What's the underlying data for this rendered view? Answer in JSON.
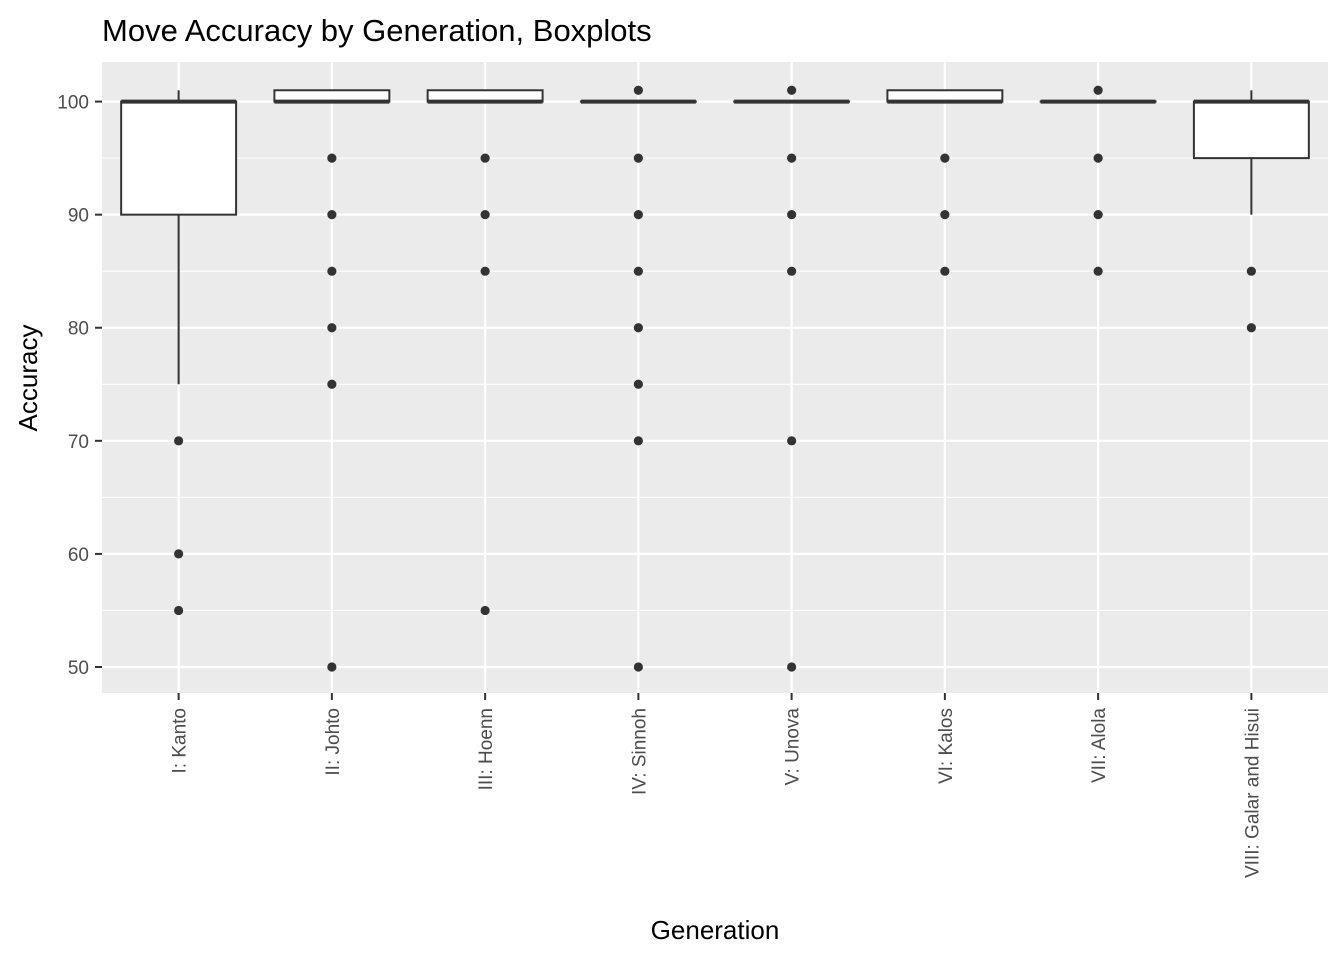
{
  "chart_data": {
    "type": "boxplot",
    "title": "Move Accuracy by Generation, Boxplots",
    "xlabel": "Generation",
    "ylabel": "Accuracy",
    "ylim": [
      47.7,
      103.5
    ],
    "yticks": [
      50,
      60,
      70,
      80,
      90,
      100
    ],
    "grid": true,
    "legend": "none",
    "colors": {
      "panel": "#ebebeb",
      "grid": "#ffffff",
      "box_fill": "#ffffff",
      "box_stroke": "#333333",
      "outlier": "#333333"
    },
    "categories": [
      "I: Kanto",
      "II: Johto",
      "III: Hoenn",
      "IV: Sinnoh",
      "V: Unova",
      "VI: Kalos",
      "VII: Alola",
      "VIII: Galar and Hisui"
    ],
    "boxes": [
      {
        "category": "I: Kanto",
        "lower_whisker": 75,
        "q1": 90,
        "median": 100,
        "q3": 100,
        "upper_whisker": 101,
        "outliers": [
          70,
          60,
          55
        ]
      },
      {
        "category": "II: Johto",
        "lower_whisker": 100,
        "q1": 100,
        "median": 100,
        "q3": 101,
        "upper_whisker": 101,
        "outliers": [
          95,
          90,
          85,
          80,
          75,
          50
        ]
      },
      {
        "category": "III: Hoenn",
        "lower_whisker": 100,
        "q1": 100,
        "median": 100,
        "q3": 101,
        "upper_whisker": 101,
        "outliers": [
          95,
          90,
          85,
          55
        ]
      },
      {
        "category": "IV: Sinnoh",
        "lower_whisker": 100,
        "q1": 100,
        "median": 100,
        "q3": 100,
        "upper_whisker": 100,
        "outliers": [
          101,
          95,
          90,
          85,
          80,
          75,
          70,
          50
        ]
      },
      {
        "category": "V: Unova",
        "lower_whisker": 100,
        "q1": 100,
        "median": 100,
        "q3": 100,
        "upper_whisker": 100,
        "outliers": [
          101,
          95,
          90,
          85,
          70,
          50
        ]
      },
      {
        "category": "VI: Kalos",
        "lower_whisker": 100,
        "q1": 100,
        "median": 100,
        "q3": 101,
        "upper_whisker": 101,
        "outliers": [
          95,
          90,
          85
        ]
      },
      {
        "category": "VII: Alola",
        "lower_whisker": 100,
        "q1": 100,
        "median": 100,
        "q3": 100,
        "upper_whisker": 100,
        "outliers": [
          101,
          95,
          90,
          85
        ]
      },
      {
        "category": "VIII: Galar and Hisui",
        "lower_whisker": 90,
        "q1": 95,
        "median": 100,
        "q3": 100,
        "upper_whisker": 101,
        "outliers": [
          85,
          80
        ]
      }
    ]
  }
}
